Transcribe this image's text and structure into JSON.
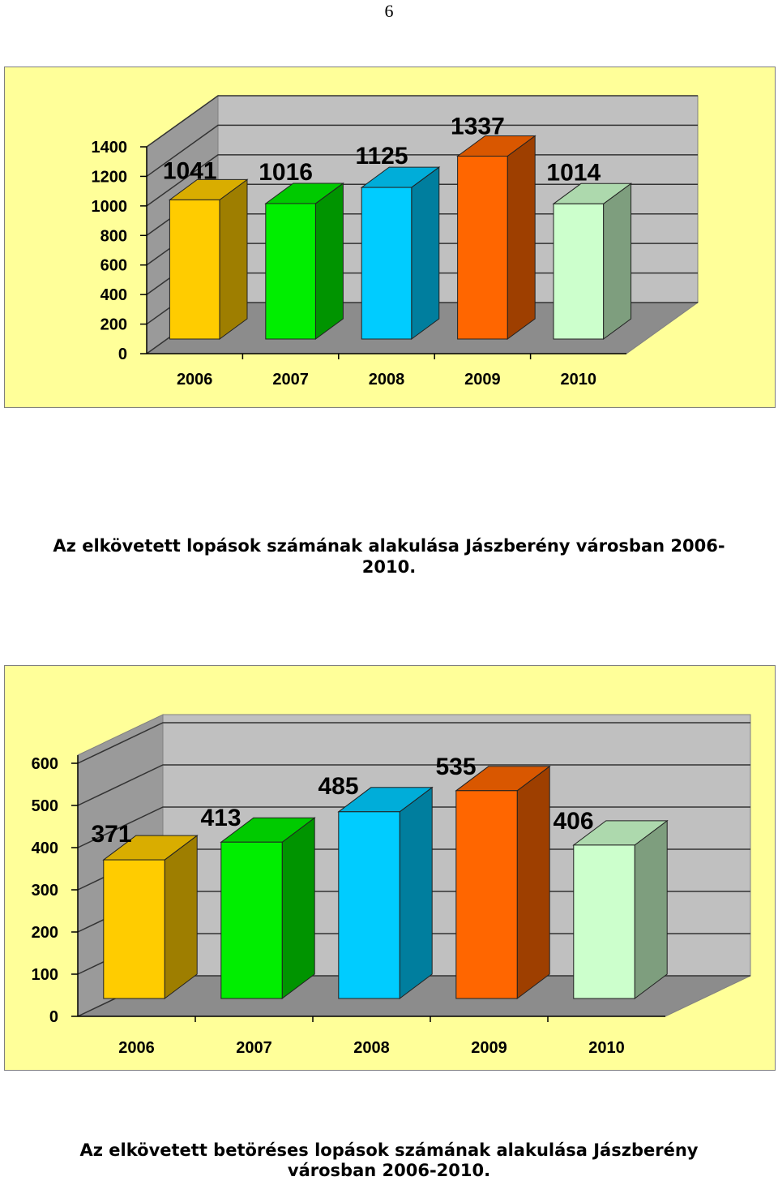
{
  "page_number": "6",
  "captions": {
    "first_line1": "Az elkövetett lopások számának alakulása Jászberény városban 2006-",
    "first_line2": "2010.",
    "second_line1": "Az elkövetett betöréses lopások számának alakulása Jászberény",
    "second_line2": "városban 2006-2010."
  },
  "chart_data": [
    {
      "type": "bar",
      "categories": [
        "2006",
        "2007",
        "2008",
        "2009",
        "2010"
      ],
      "values": [
        1041,
        1016,
        1125,
        1337,
        1014
      ],
      "data_labels": [
        "1041",
        "1016",
        "1125",
        "1337",
        "1014"
      ],
      "ylim": [
        0,
        1400
      ],
      "yticks": [
        0,
        200,
        400,
        600,
        800,
        1000,
        1200,
        1400
      ],
      "grid": true,
      "style": "3d",
      "colors": [
        "#ffcc00",
        "#00ee00",
        "#00ccff",
        "#ff6600",
        "#ccffcc"
      ],
      "title": "",
      "xlabel": "",
      "ylabel": ""
    },
    {
      "type": "bar",
      "categories": [
        "2006",
        "2007",
        "2008",
        "2009",
        "2010"
      ],
      "values": [
        371,
        413,
        485,
        535,
        406
      ],
      "data_labels": [
        "371",
        "413",
        "485",
        "535",
        "406"
      ],
      "ylim": [
        0,
        600
      ],
      "yticks": [
        0,
        100,
        200,
        300,
        400,
        500,
        600
      ],
      "grid": true,
      "style": "3d",
      "colors": [
        "#ffcc00",
        "#00ee00",
        "#00ccff",
        "#ff6600",
        "#ccffcc"
      ],
      "title": "",
      "xlabel": "",
      "ylabel": ""
    }
  ]
}
